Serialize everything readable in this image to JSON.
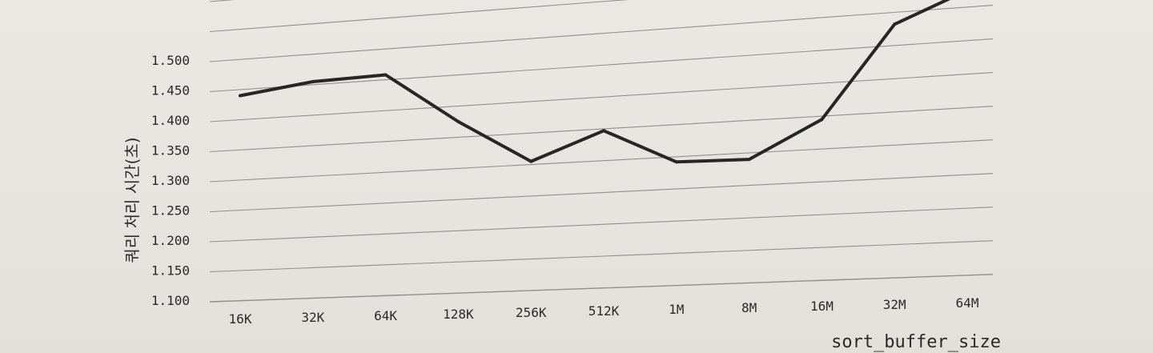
{
  "chart_data": {
    "type": "line",
    "title": "",
    "xlabel": "sort_buffer_size",
    "ylabel": "쿼리 처리 시간(초)",
    "categories": [
      "16K",
      "32K",
      "64K",
      "128K",
      "256K",
      "512K",
      "1M",
      "8M",
      "16M",
      "32M",
      "64M"
    ],
    "series": [
      {
        "values": [
          1.44,
          1.455,
          1.458,
          1.375,
          1.305,
          1.347,
          1.292,
          1.29,
          1.345,
          1.482,
          1.525
        ]
      }
    ],
    "ylim": [
      1.1,
      1.5
    ],
    "yticks": [
      "1.100",
      "1.150",
      "1.200",
      "1.250",
      "1.300",
      "1.350",
      "1.400",
      "1.450",
      "1.500"
    ],
    "grid": true,
    "legend": "none",
    "colors": {
      "line": "#262626",
      "grid": "#8f8f8f",
      "text": "#2a2a2a"
    }
  }
}
